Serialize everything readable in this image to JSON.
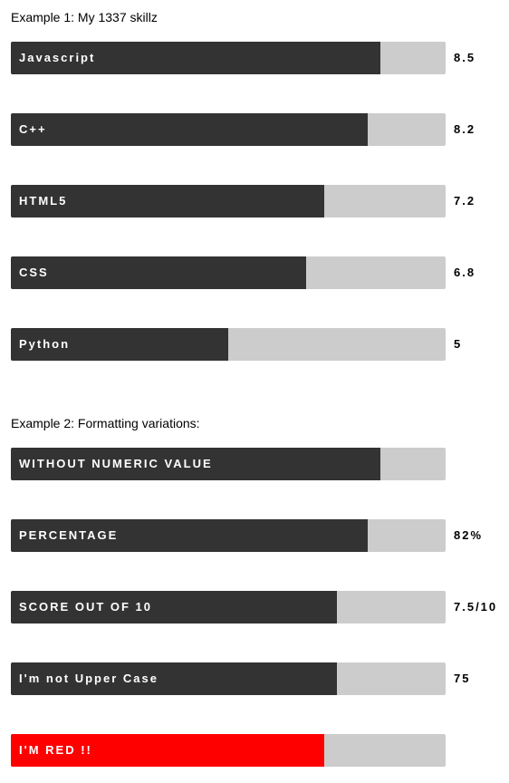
{
  "example1": {
    "title": "Example 1: My 1337 skillz",
    "skills": [
      {
        "label": "Javascript",
        "value_text": "8.5",
        "fraction": 0.85,
        "color": "#333333"
      },
      {
        "label": "C++",
        "value_text": "8.2",
        "fraction": 0.82,
        "color": "#333333"
      },
      {
        "label": "HTML5",
        "value_text": "7.2",
        "fraction": 0.72,
        "color": "#333333"
      },
      {
        "label": "CSS",
        "value_text": "6.8",
        "fraction": 0.68,
        "color": "#333333"
      },
      {
        "label": "Python",
        "value_text": "5",
        "fraction": 0.5,
        "color": "#333333"
      }
    ]
  },
  "example2": {
    "title": "Example 2: Formatting variations:",
    "skills": [
      {
        "label": "WITHOUT NUMERIC VALUE",
        "value_text": "",
        "fraction": 0.85,
        "color": "#333333"
      },
      {
        "label": "PERCENTAGE",
        "value_text": "82%",
        "fraction": 0.82,
        "color": "#333333"
      },
      {
        "label": "SCORE OUT OF 10",
        "value_text": "7.5/10",
        "fraction": 0.75,
        "color": "#333333"
      },
      {
        "label": "I'm not Upper Case",
        "value_text": "75",
        "fraction": 0.75,
        "color": "#333333"
      },
      {
        "label": "I'M RED !!",
        "value_text": "",
        "fraction": 0.72,
        "color": "#ff0000"
      }
    ]
  },
  "colors": {
    "track": "#cccccc",
    "fill_default": "#333333",
    "fill_red": "#ff0000"
  }
}
